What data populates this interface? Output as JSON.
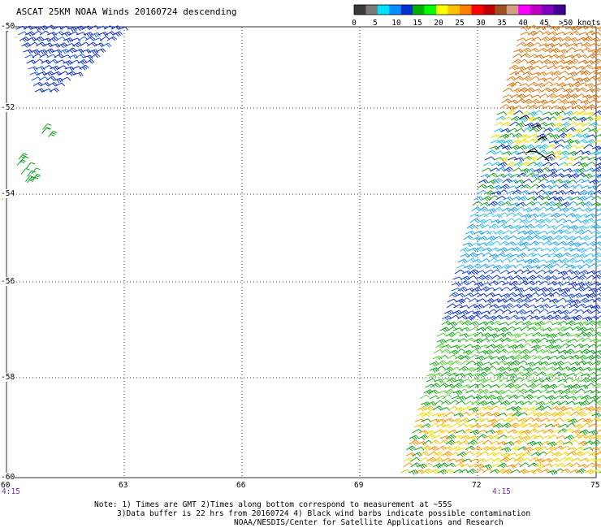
{
  "title": "ASCAT 25KM NOAA Winds 20160724 descending",
  "legend": {
    "colors": [
      "#3a3a3a",
      "#7a7a7a",
      "#00e0ff",
      "#0090ff",
      "#0030d0",
      "#00b000",
      "#00ff00",
      "#ffff00",
      "#ffc000",
      "#ff8000",
      "#ff0000",
      "#c00000",
      "#a05020",
      "#d0a080",
      "#ff00ff",
      "#c000c0",
      "#8000c0",
      "#400090"
    ],
    "labels": [
      "0",
      "5",
      "10",
      "15",
      "20",
      "25",
      "30",
      "35",
      "40",
      "45",
      ">50 knots"
    ]
  },
  "axes": {
    "lat_labels": [
      "-50",
      "-52",
      "-54",
      "-56",
      "-58",
      "-60"
    ],
    "lon_labels": [
      "60",
      "63",
      "66",
      "69",
      "72",
      "75"
    ]
  },
  "times": [
    "4:15",
    "4:15"
  ],
  "notes": [
    "Note: 1) Times are GMT 2)Times along bottom correspond to measurement at ~55S",
    "3)Data buffer is 22 hrs from 20160724 4) Black wind barbs indicate possible contamination",
    "NOAA/NESDIS/Center for Satellite Applications and Research"
  ]
}
